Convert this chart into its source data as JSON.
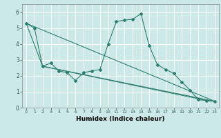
{
  "xlabel": "Humidex (Indice chaleur)",
  "background_color": "#cce8e8",
  "grid_color": "#b0d8d8",
  "line_color": "#2d7d6e",
  "xlim": [
    -0.5,
    23.5
  ],
  "ylim": [
    0,
    6.5
  ],
  "xticks": [
    0,
    1,
    2,
    3,
    4,
    5,
    6,
    7,
    8,
    9,
    10,
    11,
    12,
    13,
    14,
    15,
    16,
    17,
    18,
    19,
    20,
    21,
    22,
    23
  ],
  "yticks": [
    0,
    1,
    2,
    3,
    4,
    5,
    6
  ],
  "main_line": {
    "x": [
      0,
      1,
      2,
      3,
      4,
      5,
      6,
      7,
      8,
      9,
      10,
      11,
      12,
      13,
      14,
      15,
      16,
      17,
      18,
      19,
      20,
      21,
      22,
      23
    ],
    "y": [
      5.3,
      5.0,
      2.6,
      2.8,
      2.3,
      2.2,
      1.7,
      2.2,
      2.3,
      2.4,
      4.0,
      5.4,
      5.5,
      5.55,
      5.9,
      3.9,
      2.7,
      2.4,
      2.15,
      1.6,
      1.1,
      0.5,
      0.45,
      0.4
    ]
  },
  "extra_lines": [
    {
      "x": [
        0,
        23
      ],
      "y": [
        5.3,
        0.4
      ]
    },
    {
      "x": [
        0,
        2,
        22,
        23
      ],
      "y": [
        5.3,
        2.6,
        0.45,
        0.4
      ]
    },
    {
      "x": [
        2,
        23
      ],
      "y": [
        2.6,
        0.4
      ]
    }
  ]
}
